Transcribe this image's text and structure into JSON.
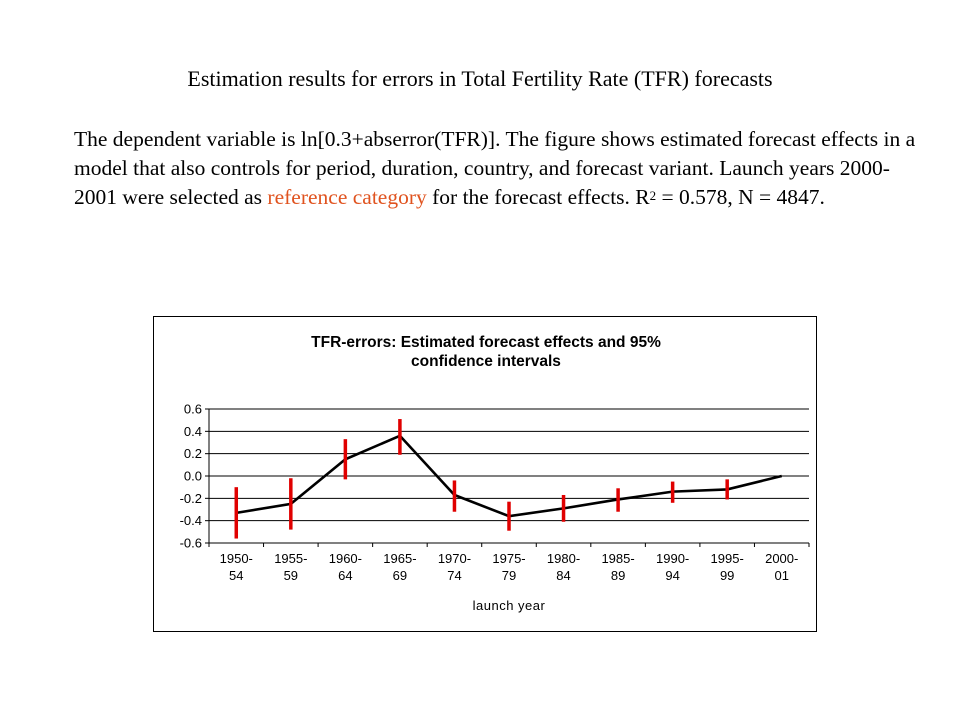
{
  "slide": {
    "title": "Estimation results for errors in Total Fertility Rate (TFR) forecasts",
    "body_part1": "The dependent variable is ln[0.3+abserror(TFR)]. The figure shows estimated forecast effects in a model that also controls for period, duration, country, and forecast variant. Launch years 2000-2001 were selected as ",
    "body_highlight": "reference category",
    "body_part2": " for the forecast effects. R",
    "body_sup": "2",
    "body_part3": " = 0.578, N = 4847.",
    "highlight_color": "#e0531f"
  },
  "chart_data": {
    "type": "line",
    "title": "TFR-errors: Estimated forecast effects and 95% confidence intervals",
    "title_lines": [
      "TFR-errors: Estimated forecast effects and 95%",
      "confidence intervals"
    ],
    "xlabel": "launch year",
    "ylabel": "",
    "categories": [
      [
        "1950-",
        "54"
      ],
      [
        "1955-",
        "59"
      ],
      [
        "1960-",
        "64"
      ],
      [
        "1965-",
        "69"
      ],
      [
        "1970-",
        "74"
      ],
      [
        "1975-",
        "79"
      ],
      [
        "1980-",
        "84"
      ],
      [
        "1985-",
        "89"
      ],
      [
        "1990-",
        "94"
      ],
      [
        "1995-",
        "99"
      ],
      [
        "2000-",
        "01"
      ]
    ],
    "series": [
      {
        "values": [
          -0.33,
          -0.25,
          0.15,
          0.36,
          -0.17,
          -0.36,
          -0.29,
          -0.21,
          -0.14,
          -0.12,
          0.0
        ],
        "color": "#000000"
      }
    ],
    "confidence_intervals": [
      [
        -0.56,
        -0.1
      ],
      [
        -0.48,
        -0.02
      ],
      [
        -0.03,
        0.33
      ],
      [
        0.19,
        0.51
      ],
      [
        -0.32,
        -0.04
      ],
      [
        -0.49,
        -0.23
      ],
      [
        -0.41,
        -0.17
      ],
      [
        -0.32,
        -0.11
      ],
      [
        -0.24,
        -0.05
      ],
      [
        -0.21,
        -0.03
      ],
      null
    ],
    "ci_color": "#e00000",
    "ylim": [
      -0.6,
      0.6
    ],
    "yticks": [
      0.6,
      0.4,
      0.2,
      0.0,
      -0.2,
      -0.4,
      -0.6
    ],
    "ytick_labels": [
      "0.6",
      "0.4",
      "0.2",
      "0.0",
      "-0.2",
      "-0.4",
      "-0.6"
    ],
    "grid": true,
    "legend": "none"
  }
}
